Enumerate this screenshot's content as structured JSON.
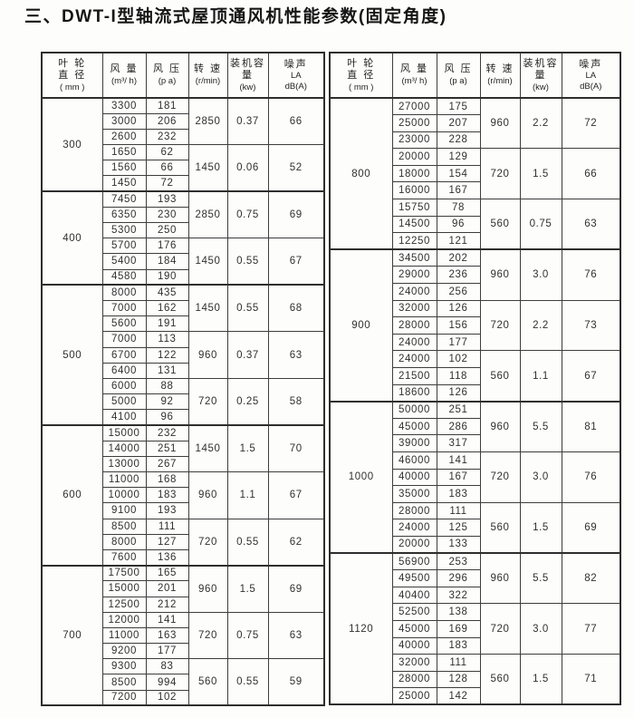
{
  "page": {
    "title": "三、DWT-I型轴流式屋顶通风机性能参数(固定角度)"
  },
  "columns": [
    {
      "key": "diameter",
      "lines": [
        {
          "t": "叶 轮"
        },
        {
          "t": "直 径"
        },
        {
          "t": "( mm )",
          "u": true
        }
      ]
    },
    {
      "key": "airflow",
      "lines": [
        {
          "t": "风 量"
        },
        {
          "t": "(m³/ h)",
          "u": true
        }
      ]
    },
    {
      "key": "pressure",
      "lines": [
        {
          "t": "风 压"
        },
        {
          "t": "(p a)",
          "u": true
        }
      ]
    },
    {
      "key": "speed",
      "lines": [
        {
          "t": "转 速"
        },
        {
          "t": "(r/min)",
          "u": true
        }
      ]
    },
    {
      "key": "capacity",
      "lines": [
        {
          "t": "装机容量"
        },
        {
          "t": "(kw)",
          "u": true
        }
      ]
    },
    {
      "key": "noise",
      "lines": [
        {
          "t": "噪声"
        },
        {
          "t": "LA",
          "u": true
        },
        {
          "t": "dB(A)",
          "u": true
        }
      ]
    }
  ],
  "tables": [
    {
      "groups": [
        {
          "diameter": "300",
          "subgroups": [
            {
              "rows": [
                [
                  "3300",
                  "181"
                ],
                [
                  "3000",
                  "206"
                ],
                [
                  "2600",
                  "232"
                ]
              ],
              "speed": "2850",
              "capacity": "0.37",
              "noise": "66"
            },
            {
              "rows": [
                [
                  "1650",
                  "62"
                ],
                [
                  "1560",
                  "66"
                ],
                [
                  "1450",
                  "72"
                ]
              ],
              "speed": "1450",
              "capacity": "0.06",
              "noise": "52"
            }
          ]
        },
        {
          "diameter": "400",
          "subgroups": [
            {
              "rows": [
                [
                  "7450",
                  "193"
                ],
                [
                  "6350",
                  "230"
                ],
                [
                  "5300",
                  "250"
                ]
              ],
              "speed": "2850",
              "capacity": "0.75",
              "noise": "69"
            },
            {
              "rows": [
                [
                  "5700",
                  "176"
                ],
                [
                  "5400",
                  "184"
                ],
                [
                  "4580",
                  "190"
                ]
              ],
              "speed": "1450",
              "capacity": "0.55",
              "noise": "67"
            }
          ]
        },
        {
          "diameter": "500",
          "subgroups": [
            {
              "rows": [
                [
                  "8000",
                  "435"
                ],
                [
                  "7000",
                  "162"
                ],
                [
                  "5600",
                  "191"
                ]
              ],
              "speed": "1450",
              "capacity": "0.55",
              "noise": "68"
            },
            {
              "rows": [
                [
                  "7000",
                  "113"
                ],
                [
                  "6700",
                  "122"
                ],
                [
                  "6400",
                  "131"
                ]
              ],
              "speed": "960",
              "capacity": "0.37",
              "noise": "63"
            },
            {
              "rows": [
                [
                  "6000",
                  "88"
                ],
                [
                  "5000",
                  "92"
                ],
                [
                  "4100",
                  "96"
                ]
              ],
              "speed": "720",
              "capacity": "0.25",
              "noise": "58"
            }
          ]
        },
        {
          "diameter": "600",
          "subgroups": [
            {
              "rows": [
                [
                  "15000",
                  "232"
                ],
                [
                  "14000",
                  "251"
                ],
                [
                  "13000",
                  "267"
                ]
              ],
              "speed": "1450",
              "capacity": "1.5",
              "noise": "70"
            },
            {
              "rows": [
                [
                  "11000",
                  "168"
                ],
                [
                  "10000",
                  "183"
                ],
                [
                  "9100",
                  "193"
                ]
              ],
              "speed": "960",
              "capacity": "1.1",
              "noise": "67"
            },
            {
              "rows": [
                [
                  "8500",
                  "111"
                ],
                [
                  "8000",
                  "127"
                ],
                [
                  "7600",
                  "136"
                ]
              ],
              "speed": "720",
              "capacity": "0.55",
              "noise": "62"
            }
          ]
        },
        {
          "diameter": "700",
          "subgroups": [
            {
              "rows": [
                [
                  "17500",
                  "165"
                ],
                [
                  "15000",
                  "201"
                ],
                [
                  "12500",
                  "212"
                ]
              ],
              "speed": "960",
              "capacity": "1.5",
              "noise": "69"
            },
            {
              "rows": [
                [
                  "12000",
                  "141"
                ],
                [
                  "11000",
                  "163"
                ],
                [
                  "9200",
                  "177"
                ]
              ],
              "speed": "720",
              "capacity": "0.75",
              "noise": "63"
            },
            {
              "rows": [
                [
                  "9300",
                  "83"
                ],
                [
                  "8500",
                  "994"
                ],
                [
                  "7200",
                  "102"
                ]
              ],
              "speed": "560",
              "capacity": "0.55",
              "noise": "59"
            }
          ]
        }
      ]
    },
    {
      "groups": [
        {
          "diameter": "800",
          "subgroups": [
            {
              "rows": [
                [
                  "27000",
                  "175"
                ],
                [
                  "25000",
                  "207"
                ],
                [
                  "23000",
                  "228"
                ]
              ],
              "speed": "960",
              "capacity": "2.2",
              "noise": "72"
            },
            {
              "rows": [
                [
                  "20000",
                  "129"
                ],
                [
                  "18000",
                  "154"
                ],
                [
                  "16000",
                  "167"
                ]
              ],
              "speed": "720",
              "capacity": "1.5",
              "noise": "66"
            },
            {
              "rows": [
                [
                  "15750",
                  "78"
                ],
                [
                  "14500",
                  "96"
                ],
                [
                  "12250",
                  "121"
                ]
              ],
              "speed": "560",
              "capacity": "0.75",
              "noise": "63"
            }
          ]
        },
        {
          "diameter": "900",
          "subgroups": [
            {
              "rows": [
                [
                  "34500",
                  "202"
                ],
                [
                  "29000",
                  "236"
                ],
                [
                  "24000",
                  "256"
                ]
              ],
              "speed": "960",
              "capacity": "3.0",
              "noise": "76"
            },
            {
              "rows": [
                [
                  "32000",
                  "126"
                ],
                [
                  "28000",
                  "156"
                ],
                [
                  "24000",
                  "177"
                ]
              ],
              "speed": "720",
              "capacity": "2.2",
              "noise": "73"
            },
            {
              "rows": [
                [
                  "24000",
                  "102"
                ],
                [
                  "21500",
                  "118"
                ],
                [
                  "18600",
                  "126"
                ]
              ],
              "speed": "560",
              "capacity": "1.1",
              "noise": "67"
            }
          ]
        },
        {
          "diameter": "1000",
          "subgroups": [
            {
              "rows": [
                [
                  "50000",
                  "251"
                ],
                [
                  "45000",
                  "286"
                ],
                [
                  "39000",
                  "317"
                ]
              ],
              "speed": "960",
              "capacity": "5.5",
              "noise": "81"
            },
            {
              "rows": [
                [
                  "46000",
                  "141"
                ],
                [
                  "40000",
                  "167"
                ],
                [
                  "35000",
                  "183"
                ]
              ],
              "speed": "720",
              "capacity": "3.0",
              "noise": "76"
            },
            {
              "rows": [
                [
                  "28000",
                  "111"
                ],
                [
                  "24000",
                  "125"
                ],
                [
                  "20000",
                  "133"
                ]
              ],
              "speed": "560",
              "capacity": "1.5",
              "noise": "69"
            }
          ]
        },
        {
          "diameter": "1120",
          "subgroups": [
            {
              "rows": [
                [
                  "56900",
                  "253"
                ],
                [
                  "49500",
                  "296"
                ],
                [
                  "40400",
                  "322"
                ]
              ],
              "speed": "960",
              "capacity": "5.5",
              "noise": "82"
            },
            {
              "rows": [
                [
                  "52500",
                  "138"
                ],
                [
                  "45000",
                  "169"
                ],
                [
                  "40000",
                  "183"
                ]
              ],
              "speed": "720",
              "capacity": "3.0",
              "noise": "77"
            },
            {
              "rows": [
                [
                  "32000",
                  "111"
                ],
                [
                  "28000",
                  "128"
                ],
                [
                  "25000",
                  "142"
                ]
              ],
              "speed": "560",
              "capacity": "1.5",
              "noise": "71"
            }
          ]
        }
      ]
    }
  ]
}
